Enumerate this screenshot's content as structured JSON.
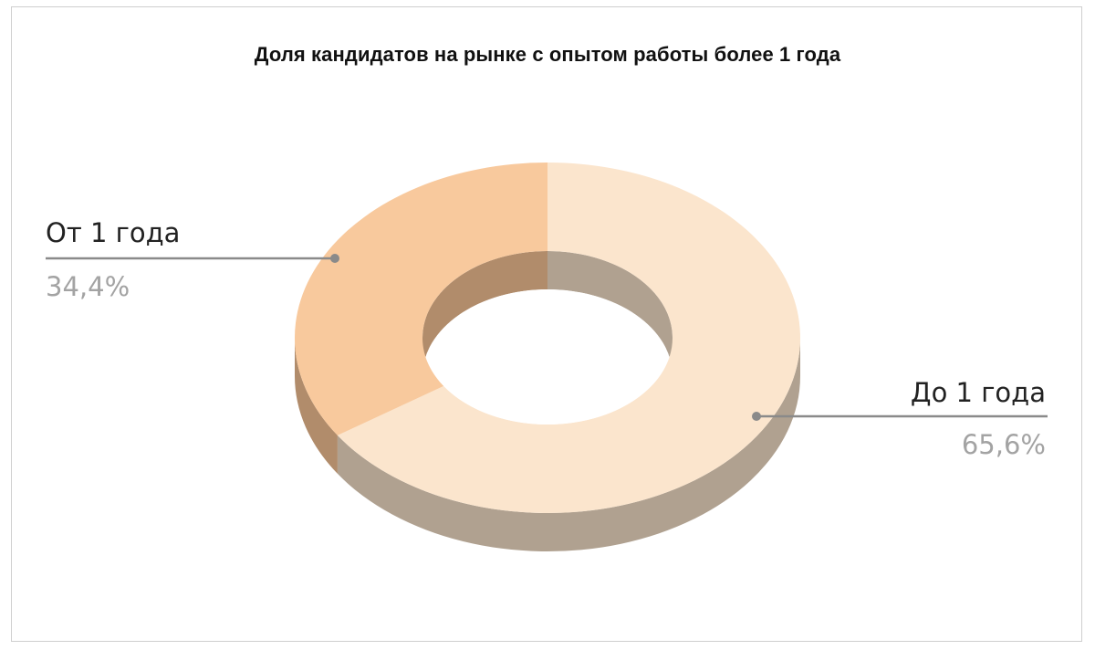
{
  "chart_data": {
    "type": "pie",
    "variant": "3d-donut",
    "title": "Доля кандидатов на рынке с опытом работы более 1 года",
    "slices": [
      {
        "label": "До 1 года",
        "value": 65.6,
        "value_label": "65,6%",
        "color": "#fbe5cd",
        "side_color": "#b0a190"
      },
      {
        "label": "От 1 года",
        "value": 34.4,
        "value_label": "34,4%",
        "color": "#f8c99d",
        "side_color": "#b18c6b"
      }
    ],
    "legend": "none"
  }
}
